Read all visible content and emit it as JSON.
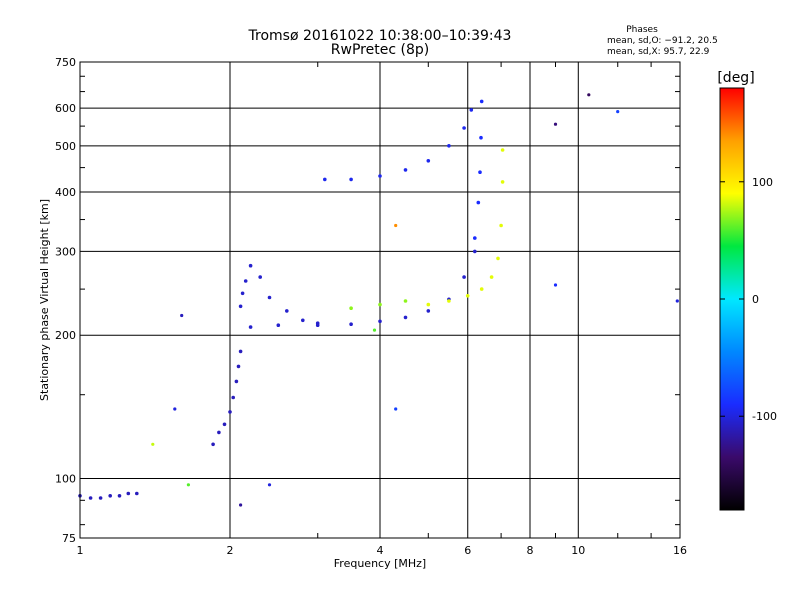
{
  "chart_data": {
    "type": "scatter",
    "title": "Tromsø 20161022 10:38:00–10:39:43",
    "subtitle": "RwPretec (8p)",
    "xlabel": "Frequency [MHz]",
    "ylabel": "Stationary phase Virtual Height [km]",
    "x_scale": "log",
    "y_scale": "log",
    "xlim": [
      1,
      16
    ],
    "ylim": [
      75,
      750
    ],
    "x_ticks": [
      1,
      2,
      4,
      6,
      8,
      10,
      16
    ],
    "y_ticks": [
      75,
      100,
      200,
      300,
      400,
      500,
      600,
      750
    ],
    "grid": true,
    "legend_header": "Phases",
    "legend_lines": [
      "mean, sd,O: −91.2, 20.5",
      "mean, sd,X:  95.7, 22.9"
    ],
    "colorbar": {
      "label": "[deg]",
      "range": [
        -180,
        180
      ],
      "ticks": [
        -100,
        0,
        100
      ],
      "colors": [
        "#000000",
        "#3a0a6a",
        "#1a2cff",
        "#0088ff",
        "#00e8ff",
        "#00e840",
        "#ffff00",
        "#ffa000",
        "#ff0000"
      ]
    },
    "traces": [
      {
        "name": "",
        "x": [
          1.0,
          1.05,
          1.1,
          1.15,
          1.2,
          1.25,
          1.3
        ],
        "y": [
          92,
          91,
          91,
          92,
          92,
          93,
          93
        ],
        "phase": -110
      },
      {
        "name": "",
        "x": [
          1.85,
          1.9,
          1.95,
          2.0,
          2.03,
          2.06,
          2.08,
          2.1
        ],
        "y": [
          118,
          125,
          130,
          138,
          148,
          160,
          172,
          185
        ],
        "phase": -110
      },
      {
        "name": "",
        "x": [
          2.1,
          2.12,
          2.15,
          2.2,
          2.3,
          2.4,
          2.6,
          2.8,
          3.0
        ],
        "y": [
          230,
          245,
          260,
          280,
          265,
          240,
          225,
          215,
          212
        ],
        "phase": -105
      },
      {
        "name": "",
        "x": [
          2.2,
          2.5,
          3.0,
          3.5,
          4.0,
          4.5,
          5.0,
          5.5,
          5.9,
          6.2
        ],
        "y": [
          208,
          210,
          210,
          211,
          214,
          218,
          225,
          238,
          265,
          300
        ],
        "phase": -105
      },
      {
        "name": "",
        "x": [
          6.2,
          6.3,
          6.35,
          6.38,
          6.4
        ],
        "y": [
          320,
          380,
          440,
          520,
          620
        ],
        "phase": -90
      },
      {
        "name": "",
        "x": [
          3.1,
          3.5,
          4.0,
          4.5,
          5.0,
          5.5,
          5.9,
          6.1
        ],
        "y": [
          425,
          425,
          432,
          445,
          465,
          500,
          545,
          595
        ],
        "phase": -95
      },
      {
        "name": "",
        "x": [
          5.0,
          5.5,
          6.0,
          6.4,
          6.7,
          6.9,
          7.0,
          7.05,
          7.05
        ],
        "y": [
          232,
          236,
          242,
          250,
          265,
          290,
          340,
          420,
          490
        ],
        "phase": 85
      },
      {
        "name": "",
        "x": [
          3.5,
          4.0,
          4.5
        ],
        "y": [
          228,
          232,
          236
        ],
        "phase": 70
      }
    ],
    "isolated_points": [
      {
        "x": 1.6,
        "y": 220,
        "phase": -110
      },
      {
        "x": 1.55,
        "y": 140,
        "phase": -100
      },
      {
        "x": 1.4,
        "y": 118,
        "phase": 80
      },
      {
        "x": 1.65,
        "y": 97,
        "phase": 60
      },
      {
        "x": 2.4,
        "y": 97,
        "phase": -100
      },
      {
        "x": 2.1,
        "y": 88,
        "phase": -120
      },
      {
        "x": 4.3,
        "y": 140,
        "phase": -80
      },
      {
        "x": 4.3,
        "y": 340,
        "phase": 140
      },
      {
        "x": 3.9,
        "y": 205,
        "phase": 60
      },
      {
        "x": 9.0,
        "y": 555,
        "phase": -130
      },
      {
        "x": 9.0,
        "y": 255,
        "phase": -90
      },
      {
        "x": 10.5,
        "y": 640,
        "phase": -140
      },
      {
        "x": 12.0,
        "y": 590,
        "phase": -80
      },
      {
        "x": 15.8,
        "y": 236,
        "phase": -100
      }
    ]
  }
}
